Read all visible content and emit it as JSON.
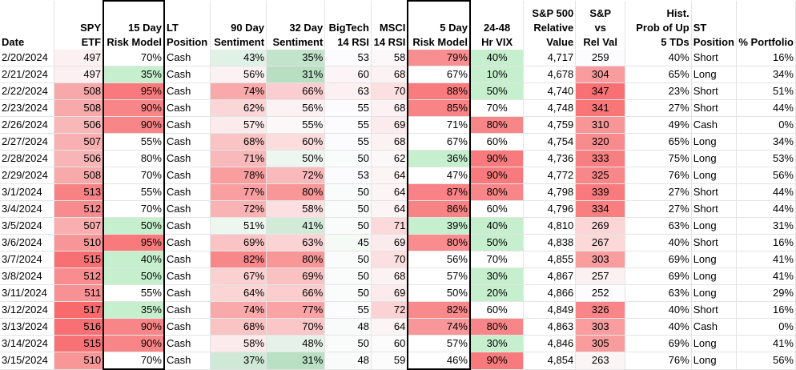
{
  "columns": [
    {
      "key": "date",
      "label": [
        "Date"
      ],
      "align": "l",
      "width": 68
    },
    {
      "key": "spy",
      "label": [
        "SPY",
        "ETF"
      ],
      "align": "r",
      "width": 66
    },
    {
      "key": "risk15",
      "label": [
        "15 Day",
        "Risk Model"
      ],
      "align": "r",
      "width": 76,
      "box": true
    },
    {
      "key": "lt",
      "label": [
        "LT",
        "Position"
      ],
      "align": "l",
      "width": 58
    },
    {
      "key": "sent90",
      "label": [
        "90 Day",
        "Sentiment"
      ],
      "align": "r",
      "width": 70
    },
    {
      "key": "sent32",
      "label": [
        "32 Day",
        "Sentiment"
      ],
      "align": "r",
      "width": 74
    },
    {
      "key": "bigtech",
      "label": [
        "BigTech",
        "14 RSI"
      ],
      "align": "r",
      "width": 58
    },
    {
      "key": "msci",
      "label": [
        "MSCI",
        "14 RSI"
      ],
      "align": "r",
      "width": 46
    },
    {
      "key": "risk5",
      "label": [
        "5 Day",
        "Risk Model"
      ],
      "align": "r",
      "width": 78,
      "box": true
    },
    {
      "key": "vix",
      "label": [
        "24-48",
        "Hr VIX"
      ],
      "align": "c",
      "width": 70
    },
    {
      "key": "rel",
      "label": [
        "S&P 500",
        "Relative",
        "Value"
      ],
      "align": "r",
      "width": 66
    },
    {
      "key": "spvs",
      "label": [
        "S&P",
        "vs",
        "Rel Val"
      ],
      "align": "c",
      "width": 64
    },
    {
      "key": "prob",
      "label": [
        "Hist.",
        "Prob of Up",
        "5 TDs"
      ],
      "align": "r",
      "width": 84
    },
    {
      "key": "st",
      "label": [
        "ST",
        "Position"
      ],
      "align": "l",
      "width": 56
    },
    {
      "key": "pct",
      "label": [
        "% Portfolio"
      ],
      "align": "r",
      "width": 74
    }
  ],
  "rows": [
    {
      "date": "2/20/2024",
      "spy": "497",
      "risk15": "70%",
      "lt": "Cash",
      "sent90": "43%",
      "sent32": "35%",
      "bigtech": "53",
      "msci": "58",
      "risk5": "79%",
      "vix": "40%",
      "rel": "4,717",
      "spvs": "259",
      "prob": "40%",
      "st": "Short",
      "pct": "16%"
    },
    {
      "date": "2/21/2024",
      "spy": "497",
      "risk15": "35%",
      "lt": "Cash",
      "sent90": "56%",
      "sent32": "31%",
      "bigtech": "60",
      "msci": "68",
      "risk5": "67%",
      "vix": "10%",
      "rel": "4,678",
      "spvs": "304",
      "prob": "65%",
      "st": "Long",
      "pct": "34%"
    },
    {
      "date": "2/22/2024",
      "spy": "508",
      "risk15": "95%",
      "lt": "Cash",
      "sent90": "74%",
      "sent32": "66%",
      "bigtech": "63",
      "msci": "70",
      "risk5": "88%",
      "vix": "50%",
      "rel": "4,740",
      "spvs": "347",
      "prob": "23%",
      "st": "Short",
      "pct": "51%"
    },
    {
      "date": "2/23/2024",
      "spy": "508",
      "risk15": "90%",
      "lt": "Cash",
      "sent90": "62%",
      "sent32": "56%",
      "bigtech": "55",
      "msci": "68",
      "risk5": "85%",
      "vix": "70%",
      "rel": "4,748",
      "spvs": "341",
      "prob": "27%",
      "st": "Short",
      "pct": "44%"
    },
    {
      "date": "2/26/2024",
      "spy": "506",
      "risk15": "90%",
      "lt": "Cash",
      "sent90": "57%",
      "sent32": "55%",
      "bigtech": "55",
      "msci": "69",
      "risk5": "71%",
      "vix": "80%",
      "rel": "4,759",
      "spvs": "310",
      "prob": "49%",
      "st": "Cash",
      "pct": "0%"
    },
    {
      "date": "2/27/2024",
      "spy": "507",
      "risk15": "55%",
      "lt": "Cash",
      "sent90": "68%",
      "sent32": "60%",
      "bigtech": "55",
      "msci": "68",
      "risk5": "67%",
      "vix": "60%",
      "rel": "4,754",
      "spvs": "320",
      "prob": "65%",
      "st": "Long",
      "pct": "34%"
    },
    {
      "date": "2/28/2024",
      "spy": "506",
      "risk15": "80%",
      "lt": "Cash",
      "sent90": "71%",
      "sent32": "50%",
      "bigtech": "50",
      "msci": "62",
      "risk5": "36%",
      "vix": "90%",
      "rel": "4,736",
      "spvs": "333",
      "prob": "75%",
      "st": "Long",
      "pct": "53%"
    },
    {
      "date": "2/29/2024",
      "spy": "508",
      "risk15": "70%",
      "lt": "Cash",
      "sent90": "78%",
      "sent32": "72%",
      "bigtech": "53",
      "msci": "64",
      "risk5": "47%",
      "vix": "90%",
      "rel": "4,772",
      "spvs": "325",
      "prob": "76%",
      "st": "Long",
      "pct": "56%"
    },
    {
      "date": "3/1/2024",
      "spy": "513",
      "risk15": "55%",
      "lt": "Cash",
      "sent90": "77%",
      "sent32": "80%",
      "bigtech": "50",
      "msci": "64",
      "risk5": "87%",
      "vix": "80%",
      "rel": "4,798",
      "spvs": "339",
      "prob": "27%",
      "st": "Short",
      "pct": "44%"
    },
    {
      "date": "3/4/2024",
      "spy": "512",
      "risk15": "70%",
      "lt": "Cash",
      "sent90": "72%",
      "sent32": "58%",
      "bigtech": "50",
      "msci": "64",
      "risk5": "86%",
      "vix": "60%",
      "rel": "4,796",
      "spvs": "334",
      "prob": "27%",
      "st": "Short",
      "pct": "44%"
    },
    {
      "date": "3/5/2024",
      "spy": "507",
      "risk15": "50%",
      "lt": "Cash",
      "sent90": "51%",
      "sent32": "41%",
      "bigtech": "50",
      "msci": "71",
      "risk5": "39%",
      "vix": "40%",
      "rel": "4,810",
      "spvs": "269",
      "prob": "63%",
      "st": "Long",
      "pct": "31%"
    },
    {
      "date": "3/6/2024",
      "spy": "510",
      "risk15": "95%",
      "lt": "Cash",
      "sent90": "69%",
      "sent32": "63%",
      "bigtech": "45",
      "msci": "69",
      "risk5": "80%",
      "vix": "50%",
      "rel": "4,838",
      "spvs": "267",
      "prob": "40%",
      "st": "Short",
      "pct": "16%"
    },
    {
      "date": "3/7/2024",
      "spy": "515",
      "risk15": "40%",
      "lt": "Cash",
      "sent90": "82%",
      "sent32": "80%",
      "bigtech": "50",
      "msci": "70",
      "risk5": "56%",
      "vix": "70%",
      "rel": "4,855",
      "spvs": "303",
      "prob": "69%",
      "st": "Long",
      "pct": "41%"
    },
    {
      "date": "3/8/2024",
      "spy": "512",
      "risk15": "50%",
      "lt": "Cash",
      "sent90": "67%",
      "sent32": "69%",
      "bigtech": "50",
      "msci": "68",
      "risk5": "57%",
      "vix": "30%",
      "rel": "4,867",
      "spvs": "257",
      "prob": "69%",
      "st": "Long",
      "pct": "41%"
    },
    {
      "date": "3/11/2024",
      "spy": "511",
      "risk15": "55%",
      "lt": "Cash",
      "sent90": "64%",
      "sent32": "66%",
      "bigtech": "50",
      "msci": "69",
      "risk5": "50%",
      "vix": "20%",
      "rel": "4,866",
      "spvs": "252",
      "prob": "63%",
      "st": "Long",
      "pct": "29%"
    },
    {
      "date": "3/12/2024",
      "spy": "517",
      "risk15": "35%",
      "lt": "Cash",
      "sent90": "74%",
      "sent32": "77%",
      "bigtech": "55",
      "msci": "72",
      "risk5": "82%",
      "vix": "60%",
      "rel": "4,849",
      "spvs": "326",
      "prob": "40%",
      "st": "Short",
      "pct": "16%"
    },
    {
      "date": "3/13/2024",
      "spy": "516",
      "risk15": "90%",
      "lt": "Cash",
      "sent90": "68%",
      "sent32": "70%",
      "bigtech": "48",
      "msci": "64",
      "risk5": "74%",
      "vix": "80%",
      "rel": "4,863",
      "spvs": "303",
      "prob": "40%",
      "st": "Cash",
      "pct": "0%"
    },
    {
      "date": "3/14/2024",
      "spy": "515",
      "risk15": "90%",
      "lt": "Cash",
      "sent90": "58%",
      "sent32": "48%",
      "bigtech": "50",
      "msci": "60",
      "risk5": "57%",
      "vix": "30%",
      "rel": "4,846",
      "spvs": "305",
      "prob": "69%",
      "st": "Long",
      "pct": "41%"
    },
    {
      "date": "3/15/2024",
      "spy": "510",
      "risk15": "70%",
      "lt": "Cash",
      "sent90": "37%",
      "sent32": "31%",
      "bigtech": "48",
      "msci": "59",
      "risk5": "46%",
      "vix": "90%",
      "rel": "4,854",
      "spvs": "263",
      "prob": "76%",
      "st": "Long",
      "pct": "56%"
    }
  ],
  "cell_colors": {
    "spy": [
      "#fdf0f2",
      "#fdf0f2",
      "#f8a8a9",
      "#f8a9aa",
      "#f9b7b8",
      "#f9b0b1",
      "#f9b5b6",
      "#f8aaab",
      "#f88183",
      "#f88b8d",
      "#f9aeaf",
      "#f89596",
      "#f87073",
      "#f88c8e",
      "#f89193",
      "#f86a6c",
      "#f87073",
      "#f87174",
      "#f89698"
    ],
    "risk15": [
      "#ffffff",
      "#c6efce",
      "#f87a7c",
      "#f88688",
      "#f88688",
      "#ffffff",
      "#ffffff",
      "#ffffff",
      "#ffffff",
      "#ffffff",
      "#c6efce",
      "#f87a7c",
      "#c6efce",
      "#c6efce",
      "#ffffff",
      "#c6efce",
      "#f88688",
      "#f88688",
      "#ffffff"
    ],
    "lt": [
      "#ffffff",
      "#ffffff",
      "#ffffff",
      "#ffffff",
      "#ffffff",
      "#ffffff",
      "#ffffff",
      "#ffffff",
      "#ffffff",
      "#ffffff",
      "#ffffff",
      "#ffffff",
      "#ffffff",
      "#ffffff",
      "#ffffff",
      "#ffffff",
      "#ffffff",
      "#ffffff",
      "#ffffff"
    ],
    "sent90": [
      "#e0f1e5",
      "#fcf1f3",
      "#f9a9aa",
      "#fbd6d7",
      "#fcebec",
      "#fac3c4",
      "#f9b8b9",
      "#f99d9e",
      "#f99fa1",
      "#f9b3b4",
      "#eef6f0",
      "#fac4c5",
      "#f88789",
      "#fad0d1",
      "#fbd4d5",
      "#f9a9aa",
      "#fac3c4",
      "#fcebec",
      "#cfe9d6"
    ],
    "sent32": [
      "#c3e4cc",
      "#b8dfc2",
      "#faced0",
      "#fcf2f4",
      "#fcf7f8",
      "#fcdcdd",
      "#eef6f0",
      "#fab9ba",
      "#f99798",
      "#fcdfe0",
      "#d2ebd9",
      "#fbd3d4",
      "#f99798",
      "#fac1c2",
      "#fbcdce",
      "#f9a3a4",
      "#fac6c7",
      "#e6f2e9",
      "#b9e0c3"
    ],
    "bigtech": [
      "#fcfcff",
      "#fcf4f6",
      "#fcf0f2",
      "#fcfbfd",
      "#fcfbfd",
      "#fcfbfd",
      "#fafcfb",
      "#fcfcff",
      "#fafcfb",
      "#fafcfb",
      "#fafcfb",
      "#f5faf6",
      "#fafcfb",
      "#fafcfb",
      "#fafcfb",
      "#fcfbfd",
      "#f8fbf9",
      "#fafcfb",
      "#f8fbf9"
    ],
    "msci": [
      "#fcf8f9",
      "#fcf2f3",
      "#fcdfe0",
      "#fcf2f3",
      "#fcebec",
      "#fcf2f3",
      "#fcf8f9",
      "#fcf4f5",
      "#fcf4f5",
      "#fcf4f5",
      "#fcd9da",
      "#fcebec",
      "#fcdfe0",
      "#fcf2f3",
      "#fcebec",
      "#fcd3d4",
      "#fcf4f5",
      "#fcfcfc",
      "#fcfcfc"
    ],
    "risk5": [
      "#f88e90",
      "#ffffff",
      "#f87c7e",
      "#f88486",
      "#ffffff",
      "#ffffff",
      "#c6efce",
      "#ffffff",
      "#f88285",
      "#f88385",
      "#c6efce",
      "#f88c8e",
      "#ffffff",
      "#ffffff",
      "#ffffff",
      "#f88a8c",
      "#f89799",
      "#ffffff",
      "#ffffff"
    ],
    "vix": [
      "#c6efce",
      "#c6efce",
      "#c6efce",
      "#ffffff",
      "#f88688",
      "#ffffff",
      "#f87a7c",
      "#f87a7c",
      "#f88688",
      "#ffffff",
      "#c6efce",
      "#c6efce",
      "#ffffff",
      "#c6efce",
      "#c6efce",
      "#ffffff",
      "#f88688",
      "#c6efce",
      "#f87a7c"
    ],
    "spvs": [
      "#fcfcff",
      "#f99c9e",
      "#f87074",
      "#f87678",
      "#f89597",
      "#f88b8d",
      "#f87f81",
      "#f88789",
      "#f87a7c",
      "#f87e80",
      "#fcd6d7",
      "#fcd8d9",
      "#f99d9f",
      "#fcf1f2",
      "#fcfcff",
      "#f88688",
      "#f99d9f",
      "#f89c9e",
      "#fcf5f6"
    ]
  }
}
